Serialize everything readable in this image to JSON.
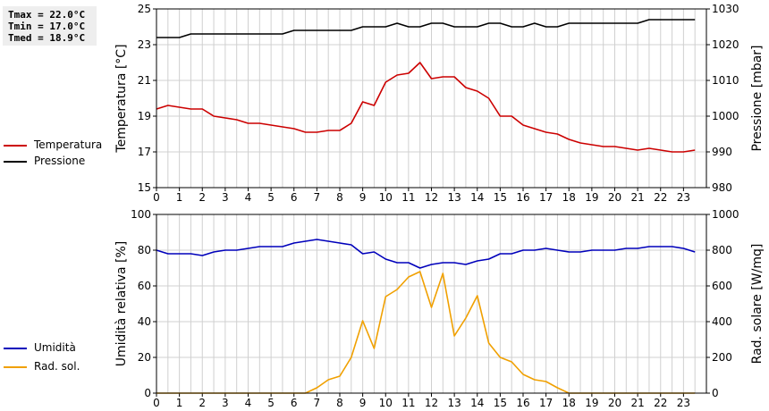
{
  "stats": {
    "tmax": "Tmax = 22.0°C",
    "tmin": "Tmin = 17.0°C",
    "tmed": "Tmed = 18.9°C"
  },
  "chart_data": [
    {
      "type": "line",
      "x": [
        0,
        0.5,
        1,
        1.5,
        2,
        2.5,
        3,
        3.5,
        4,
        4.5,
        5,
        5.5,
        6,
        6.5,
        7,
        7.5,
        8,
        8.5,
        9,
        9.5,
        10,
        10.5,
        11,
        11.5,
        12,
        12.5,
        13,
        13.5,
        14,
        14.5,
        15,
        15.5,
        16,
        16.5,
        17,
        17.5,
        18,
        18.5,
        19,
        19.5,
        20,
        20.5,
        21,
        21.5,
        22,
        22.5,
        23,
        23.5
      ],
      "xlim": [
        0,
        24
      ],
      "xticks": [
        "0",
        "1",
        "2",
        "3",
        "4",
        "5",
        "6",
        "7",
        "8",
        "9",
        "10",
        "11",
        "12",
        "13",
        "14",
        "15",
        "16",
        "17",
        "18",
        "19",
        "20",
        "21",
        "22",
        "23"
      ],
      "ylabel": "Temperatura [°C]",
      "ylim": [
        15,
        25
      ],
      "yticks": [
        "15",
        "17",
        "19",
        "21",
        "23",
        "25"
      ],
      "ylabel_right": "Pressione [mbar]",
      "ylim_right": [
        980,
        1030
      ],
      "yticks_right": [
        "980",
        "990",
        "1000",
        "1010",
        "1020",
        "1030"
      ],
      "grid": true,
      "legend": "left",
      "series": [
        {
          "name": "Temperatura",
          "color": "#cc0000",
          "axis": "left",
          "values": [
            19.4,
            19.6,
            19.5,
            19.4,
            19.4,
            19.0,
            18.9,
            18.8,
            18.6,
            18.6,
            18.5,
            18.4,
            18.3,
            18.1,
            18.1,
            18.2,
            18.2,
            18.6,
            19.8,
            19.6,
            20.9,
            21.3,
            21.4,
            22.0,
            21.1,
            21.2,
            21.2,
            20.6,
            20.4,
            20.0,
            19.0,
            19.0,
            18.5,
            18.3,
            18.1,
            18.0,
            17.7,
            17.5,
            17.4,
            17.3,
            17.3,
            17.2,
            17.1,
            17.2,
            17.1,
            17.0,
            17.0,
            17.1
          ]
        },
        {
          "name": "Pressione",
          "color": "#000000",
          "axis": "right",
          "values": [
            1022,
            1022,
            1022,
            1023,
            1023,
            1023,
            1023,
            1023,
            1023,
            1023,
            1023,
            1023,
            1024,
            1024,
            1024,
            1024,
            1024,
            1024,
            1025,
            1025,
            1025,
            1026,
            1025,
            1025,
            1026,
            1026,
            1025,
            1025,
            1025,
            1026,
            1026,
            1025,
            1025,
            1026,
            1025,
            1025,
            1026,
            1026,
            1026,
            1026,
            1026,
            1026,
            1026,
            1027,
            1027,
            1027,
            1027,
            1027
          ]
        }
      ]
    },
    {
      "type": "line",
      "x": [
        0,
        0.5,
        1,
        1.5,
        2,
        2.5,
        3,
        3.5,
        4,
        4.5,
        5,
        5.5,
        6,
        6.5,
        7,
        7.5,
        8,
        8.5,
        9,
        9.5,
        10,
        10.5,
        11,
        11.5,
        12,
        12.5,
        13,
        13.5,
        14,
        14.5,
        15,
        15.5,
        16,
        16.5,
        17,
        17.5,
        18,
        18.5,
        19,
        19.5,
        20,
        20.5,
        21,
        21.5,
        22,
        22.5,
        23,
        23.5
      ],
      "xlim": [
        0,
        24
      ],
      "xticks": [
        "0",
        "1",
        "2",
        "3",
        "4",
        "5",
        "6",
        "7",
        "8",
        "9",
        "10",
        "11",
        "12",
        "13",
        "14",
        "15",
        "16",
        "17",
        "18",
        "19",
        "20",
        "21",
        "22",
        "23"
      ],
      "ylabel": "Umidità relativa [%]",
      "ylim": [
        0,
        100
      ],
      "yticks": [
        "0",
        "20",
        "40",
        "60",
        "80",
        "100"
      ],
      "ylabel_right": "Rad. solare [W/mq]",
      "ylim_right": [
        0,
        1000
      ],
      "yticks_right": [
        "0",
        "200",
        "400",
        "600",
        "800",
        "1000"
      ],
      "grid": true,
      "legend": "left",
      "series": [
        {
          "name": "Umidità",
          "color": "#0000bb",
          "axis": "left",
          "values": [
            80,
            78,
            78,
            78,
            77,
            79,
            80,
            80,
            81,
            82,
            82,
            82,
            84,
            85,
            86,
            85,
            84,
            83,
            78,
            79,
            75,
            73,
            73,
            70,
            72,
            73,
            73,
            72,
            74,
            75,
            78,
            78,
            80,
            80,
            81,
            80,
            79,
            79,
            80,
            80,
            80,
            81,
            81,
            82,
            82,
            82,
            81,
            79
          ]
        },
        {
          "name": "Rad. sol.",
          "color": "#f0a000",
          "axis": "right",
          "values": [
            0,
            0,
            0,
            0,
            0,
            0,
            0,
            0,
            0,
            0,
            0,
            0,
            0,
            0,
            30,
            75,
            95,
            200,
            405,
            250,
            540,
            580,
            650,
            680,
            480,
            670,
            320,
            420,
            545,
            280,
            200,
            175,
            105,
            75,
            65,
            30,
            0,
            0,
            0,
            0,
            0,
            0,
            0,
            0,
            0,
            0,
            0,
            0
          ]
        }
      ]
    }
  ]
}
